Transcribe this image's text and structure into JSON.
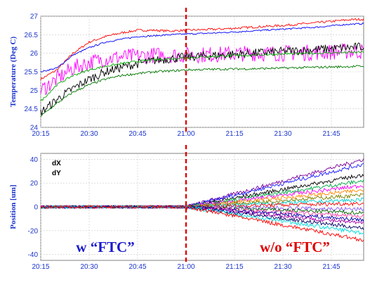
{
  "chart_data": [
    {
      "type": "line",
      "ylabel": "Temperature (Deg C)",
      "xlabel": "",
      "x_ticks": [
        "20:15",
        "20:30",
        "20:45",
        "21:00",
        "21:15",
        "21:30",
        "21:45"
      ],
      "x_range": [
        "20:15",
        "21:55"
      ],
      "ylim": [
        24,
        27
      ],
      "y_ticks": [
        "24",
        "24.5",
        "25",
        "25.5",
        "26",
        "26.5",
        "27"
      ],
      "grid": true,
      "marker_time": "21:00",
      "series": [
        {
          "color": "#ff0000",
          "noise": 0.03,
          "x": [
            "20:15",
            "20:20",
            "20:25",
            "20:30",
            "20:35",
            "20:40",
            "20:45",
            "20:50",
            "20:55",
            "21:00",
            "21:10",
            "21:20",
            "21:30",
            "21:40",
            "21:50",
            "21:55"
          ],
          "y": [
            25.3,
            25.55,
            26.0,
            26.3,
            26.45,
            26.55,
            26.62,
            26.62,
            26.6,
            26.62,
            26.65,
            26.7,
            26.75,
            26.82,
            26.9,
            26.92
          ]
        },
        {
          "color": "#0000ff",
          "noise": 0.02,
          "x": [
            "20:15",
            "20:20",
            "20:25",
            "20:30",
            "20:35",
            "20:40",
            "20:45",
            "20:50",
            "20:55",
            "21:00",
            "21:10",
            "21:20",
            "21:30",
            "21:40",
            "21:50",
            "21:55"
          ],
          "y": [
            25.5,
            25.6,
            25.95,
            26.15,
            26.3,
            26.38,
            26.45,
            26.47,
            26.5,
            26.52,
            26.55,
            26.6,
            26.65,
            26.7,
            26.78,
            26.8
          ]
        },
        {
          "color": "#ff00ff",
          "noise": 0.22,
          "x": [
            "20:15",
            "20:20",
            "20:25",
            "20:30",
            "20:35",
            "20:40",
            "20:45",
            "20:50",
            "20:55",
            "21:00",
            "21:10",
            "21:20",
            "21:30",
            "21:40",
            "21:50",
            "21:55"
          ],
          "y": [
            25.0,
            25.3,
            25.6,
            25.75,
            25.85,
            25.9,
            25.92,
            25.95,
            25.95,
            25.95,
            25.97,
            26.0,
            26.0,
            26.02,
            26.05,
            26.05
          ]
        },
        {
          "color": "#000000",
          "noise": 0.12,
          "x": [
            "20:15",
            "20:20",
            "20:25",
            "20:30",
            "20:35",
            "20:40",
            "20:45",
            "20:50",
            "20:55",
            "21:00",
            "21:10",
            "21:20",
            "21:30",
            "21:40",
            "21:50",
            "21:55"
          ],
          "y": [
            24.4,
            24.75,
            25.05,
            25.3,
            25.5,
            25.62,
            25.72,
            25.8,
            25.85,
            25.9,
            25.95,
            26.0,
            26.05,
            26.1,
            26.15,
            26.18
          ]
        },
        {
          "color": "#00aa00",
          "noise": 0.03,
          "x": [
            "20:15",
            "20:20",
            "20:25",
            "20:30",
            "20:35",
            "20:40",
            "20:45",
            "20:50",
            "20:55",
            "21:00",
            "21:10",
            "21:20",
            "21:30",
            "21:40",
            "21:50",
            "21:55"
          ],
          "y": [
            24.7,
            25.15,
            25.4,
            25.55,
            25.65,
            25.72,
            25.78,
            25.82,
            25.85,
            25.88,
            25.92,
            25.95,
            25.98,
            26.0,
            26.02,
            26.03
          ]
        },
        {
          "color": "#007700",
          "noise": 0.03,
          "x": [
            "20:15",
            "20:20",
            "20:25",
            "20:30",
            "20:35",
            "20:40",
            "20:45",
            "20:50",
            "20:55",
            "21:00",
            "21:10",
            "21:20",
            "21:30",
            "21:40",
            "21:50",
            "21:55"
          ],
          "y": [
            24.3,
            24.65,
            24.95,
            25.15,
            25.3,
            25.4,
            25.45,
            25.5,
            25.52,
            25.55,
            25.57,
            25.58,
            25.6,
            25.62,
            25.64,
            25.65
          ]
        }
      ]
    },
    {
      "type": "line",
      "ylabel": "Position [um]",
      "xlabel": "",
      "x_ticks": [
        "20:15",
        "20:30",
        "20:45",
        "21:00",
        "21:15",
        "21:30",
        "21:45"
      ],
      "x_range": [
        "20:15",
        "21:55"
      ],
      "ylim": [
        -45,
        45
      ],
      "y_ticks": [
        "-40",
        "-20",
        "0",
        "20",
        "40"
      ],
      "grid": true,
      "marker_time": "21:00",
      "legend": [
        "dX",
        "dY"
      ],
      "legend_position": "top-left",
      "series": [
        {
          "color": "#7b0099",
          "x": [
            "20:15",
            "21:00",
            "21:55"
          ],
          "y": [
            0,
            0,
            40
          ]
        },
        {
          "color": "#1a1aff",
          "x": [
            "20:15",
            "21:00",
            "21:55"
          ],
          "y": [
            0,
            0,
            36
          ]
        },
        {
          "color": "#000000",
          "x": [
            "20:15",
            "21:00",
            "21:55"
          ],
          "y": [
            0,
            0,
            27
          ]
        },
        {
          "color": "#00aa44",
          "x": [
            "20:15",
            "21:00",
            "21:55"
          ],
          "y": [
            0,
            0,
            22
          ]
        },
        {
          "color": "#ff00ff",
          "x": [
            "20:15",
            "21:00",
            "21:55"
          ],
          "y": [
            0,
            0,
            18
          ]
        },
        {
          "color": "#ff8800",
          "x": [
            "20:15",
            "21:00",
            "21:55"
          ],
          "y": [
            0,
            0,
            14
          ]
        },
        {
          "color": "#808000",
          "x": [
            "20:15",
            "21:00",
            "21:55"
          ],
          "y": [
            0,
            0,
            10
          ]
        },
        {
          "color": "#00cccc",
          "x": [
            "20:15",
            "21:00",
            "21:55"
          ],
          "y": [
            0,
            0,
            6
          ]
        },
        {
          "color": "#ff0000",
          "x": [
            "20:15",
            "21:00",
            "21:55"
          ],
          "y": [
            0,
            0,
            3
          ]
        },
        {
          "color": "#8855ff",
          "x": [
            "20:15",
            "21:00",
            "21:55"
          ],
          "y": [
            0,
            0,
            -2
          ]
        },
        {
          "color": "#006600",
          "x": [
            "20:15",
            "21:00",
            "21:55"
          ],
          "y": [
            0,
            0,
            -5
          ]
        },
        {
          "color": "#ff44aa",
          "x": [
            "20:15",
            "21:00",
            "21:55"
          ],
          "y": [
            0,
            0,
            -8
          ]
        },
        {
          "color": "#0000aa",
          "x": [
            "20:15",
            "21:00",
            "21:55"
          ],
          "y": [
            0,
            0,
            -11
          ]
        },
        {
          "color": "#aa00aa",
          "x": [
            "20:15",
            "21:00",
            "21:55"
          ],
          "y": [
            0,
            0,
            -14
          ]
        },
        {
          "color": "#000066",
          "x": [
            "20:15",
            "21:00",
            "21:55"
          ],
          "y": [
            0,
            0,
            -18
          ]
        },
        {
          "color": "#00dddd",
          "x": [
            "20:15",
            "21:00",
            "21:55"
          ],
          "y": [
            0,
            0,
            -22
          ]
        },
        {
          "color": "#ff0000",
          "x": [
            "20:15",
            "21:00",
            "21:55"
          ],
          "y": [
            0,
            0,
            -28
          ]
        }
      ]
    }
  ],
  "annotations": {
    "with_ftc": {
      "text": "w “FTC”",
      "color": "#1a1acc"
    },
    "without_ftc": {
      "text": "w/o “FTC”",
      "color": "#e00000"
    }
  },
  "colors": {
    "axis_text": "#1a33cc",
    "marker_line": "#e00000",
    "grid": "#c8c8c8"
  }
}
